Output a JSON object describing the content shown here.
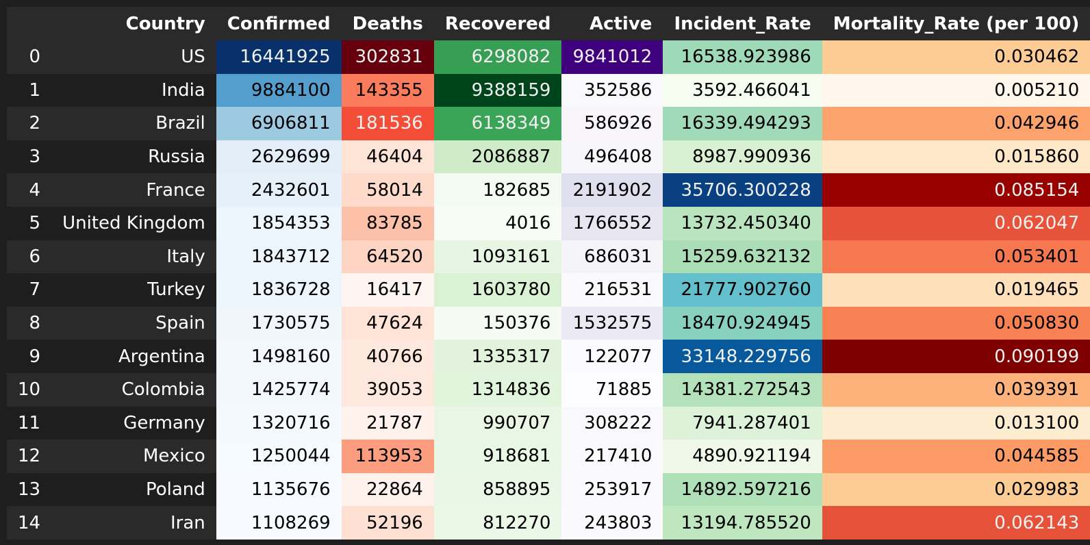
{
  "chart_data": {
    "type": "table",
    "columns": [
      "Country",
      "Confirmed",
      "Deaths",
      "Recovered",
      "Active",
      "Incident_Rate",
      "Mortality_Rate (per 100)"
    ],
    "rows": [
      {
        "index": "0",
        "country": "US",
        "confirmed": "16441925",
        "deaths": "302831",
        "recovered": "6298082",
        "active": "9841012",
        "incident_rate": "16538.923986",
        "mortality_rate": "0.030462"
      },
      {
        "index": "1",
        "country": "India",
        "confirmed": "9884100",
        "deaths": "143355",
        "recovered": "9388159",
        "active": "352586",
        "incident_rate": "3592.466041",
        "mortality_rate": "0.005210"
      },
      {
        "index": "2",
        "country": "Brazil",
        "confirmed": "6906811",
        "deaths": "181536",
        "recovered": "6138349",
        "active": "586926",
        "incident_rate": "16339.494293",
        "mortality_rate": "0.042946"
      },
      {
        "index": "3",
        "country": "Russia",
        "confirmed": "2629699",
        "deaths": "46404",
        "recovered": "2086887",
        "active": "496408",
        "incident_rate": "8987.990936",
        "mortality_rate": "0.015860"
      },
      {
        "index": "4",
        "country": "France",
        "confirmed": "2432601",
        "deaths": "58014",
        "recovered": "182685",
        "active": "2191902",
        "incident_rate": "35706.300228",
        "mortality_rate": "0.085154"
      },
      {
        "index": "5",
        "country": "United Kingdom",
        "confirmed": "1854353",
        "deaths": "83785",
        "recovered": "4016",
        "active": "1766552",
        "incident_rate": "13732.450340",
        "mortality_rate": "0.062047"
      },
      {
        "index": "6",
        "country": "Italy",
        "confirmed": "1843712",
        "deaths": "64520",
        "recovered": "1093161",
        "active": "686031",
        "incident_rate": "15259.632132",
        "mortality_rate": "0.053401"
      },
      {
        "index": "7",
        "country": "Turkey",
        "confirmed": "1836728",
        "deaths": "16417",
        "recovered": "1603780",
        "active": "216531",
        "incident_rate": "21777.902760",
        "mortality_rate": "0.019465"
      },
      {
        "index": "8",
        "country": "Spain",
        "confirmed": "1730575",
        "deaths": "47624",
        "recovered": "150376",
        "active": "1532575",
        "incident_rate": "18470.924945",
        "mortality_rate": "0.050830"
      },
      {
        "index": "9",
        "country": "Argentina",
        "confirmed": "1498160",
        "deaths": "40766",
        "recovered": "1335317",
        "active": "122077",
        "incident_rate": "33148.229756",
        "mortality_rate": "0.090199"
      },
      {
        "index": "10",
        "country": "Colombia",
        "confirmed": "1425774",
        "deaths": "39053",
        "recovered": "1314836",
        "active": "71885",
        "incident_rate": "14381.272543",
        "mortality_rate": "0.039391"
      },
      {
        "index": "11",
        "country": "Germany",
        "confirmed": "1320716",
        "deaths": "21787",
        "recovered": "990707",
        "active": "308222",
        "incident_rate": "7941.287401",
        "mortality_rate": "0.013100"
      },
      {
        "index": "12",
        "country": "Mexico",
        "confirmed": "1250044",
        "deaths": "113953",
        "recovered": "918681",
        "active": "217410",
        "incident_rate": "4890.921194",
        "mortality_rate": "0.044585"
      },
      {
        "index": "13",
        "country": "Poland",
        "confirmed": "1135676",
        "deaths": "22864",
        "recovered": "858895",
        "active": "253917",
        "incident_rate": "14892.597216",
        "mortality_rate": "0.029983"
      },
      {
        "index": "14",
        "country": "Iran",
        "confirmed": "1108269",
        "deaths": "52196",
        "recovered": "812270",
        "active": "243803",
        "incident_rate": "13194.785520",
        "mortality_rate": "0.062143"
      }
    ],
    "column_colormaps": {
      "confirmed": "Blues",
      "deaths": "Reds",
      "recovered": "Greens",
      "active": "Purples",
      "incident_rate": "GnBu",
      "mortality_rate": "OrRd"
    }
  }
}
